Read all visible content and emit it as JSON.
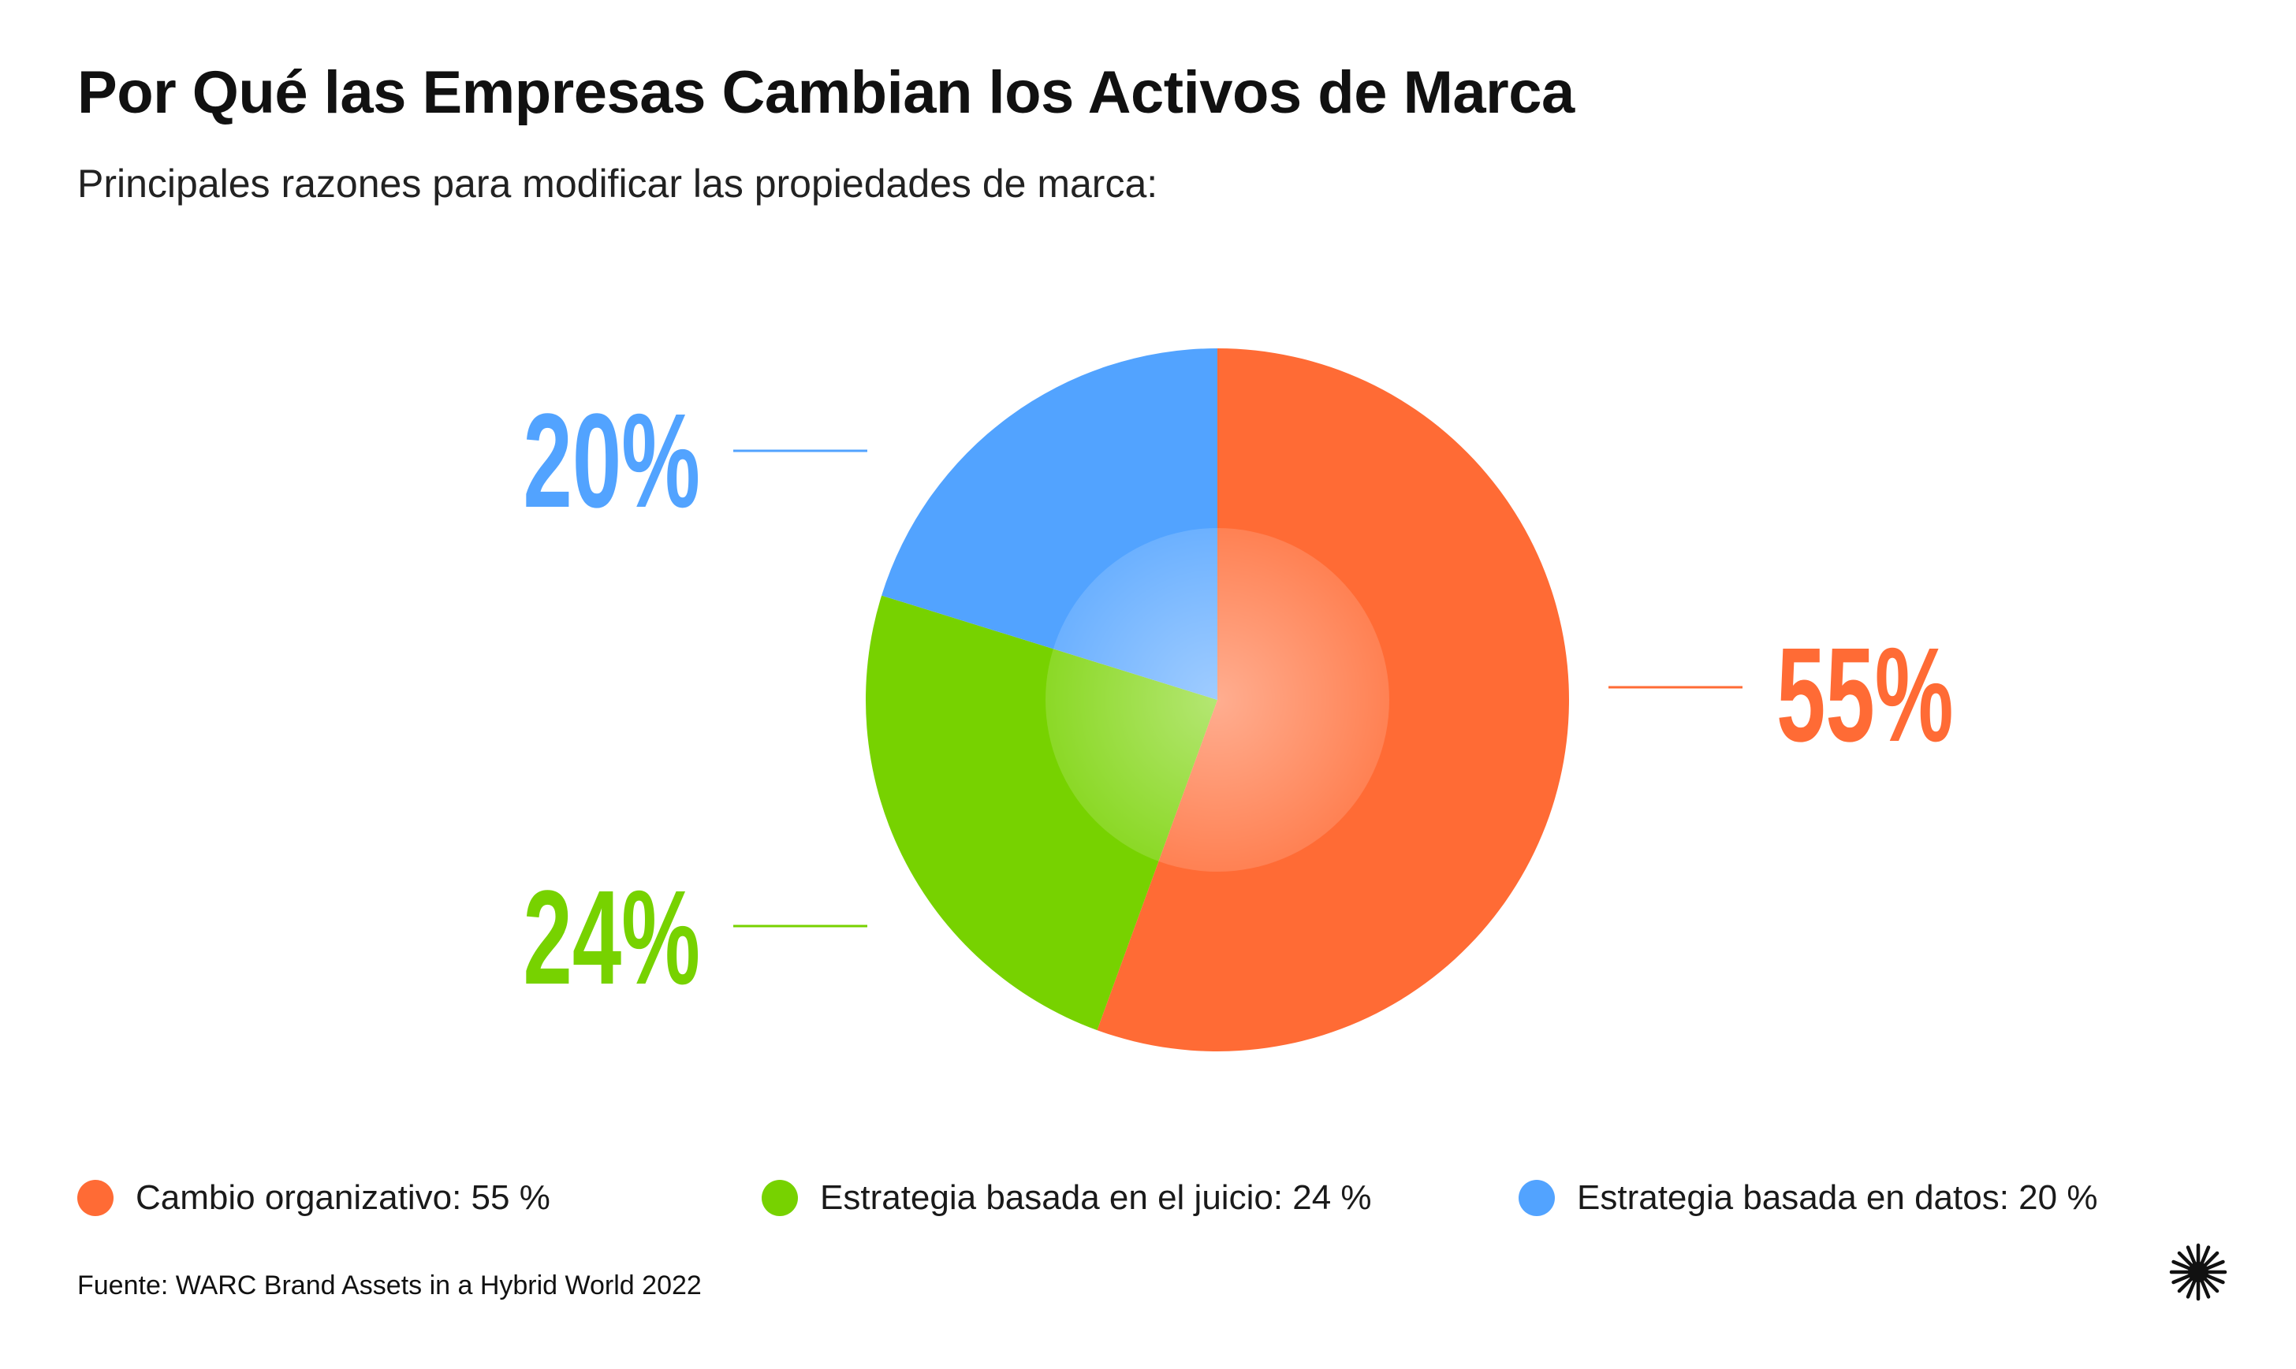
{
  "title": "Por Qué las Empresas Cambian los Activos de Marca",
  "subtitle": "Principales razones para modificar las propiedades de marca:",
  "source": "Fuente: WARC Brand Assets in a Hybrid World 2022",
  "logo_icon": "starburst-icon",
  "chart_data": {
    "type": "pie",
    "title": "Por Qué las Empresas Cambian los Activos de Marca",
    "slices": [
      {
        "name": "Cambio organizativo",
        "value": 55,
        "label": "55%",
        "legend": "Cambio organizativo: 55 %",
        "color": "#FF6B35"
      },
      {
        "name": "Estrategia basada en el juicio",
        "value": 24,
        "label": "24%",
        "legend": "Estrategia basada en el juicio: 24 %",
        "color": "#77D200"
      },
      {
        "name": "Estrategia basada en datos",
        "value": 20,
        "label": "20%",
        "legend": "Estrategia basada en datos: 20 %",
        "color": "#52A3FF"
      }
    ]
  }
}
